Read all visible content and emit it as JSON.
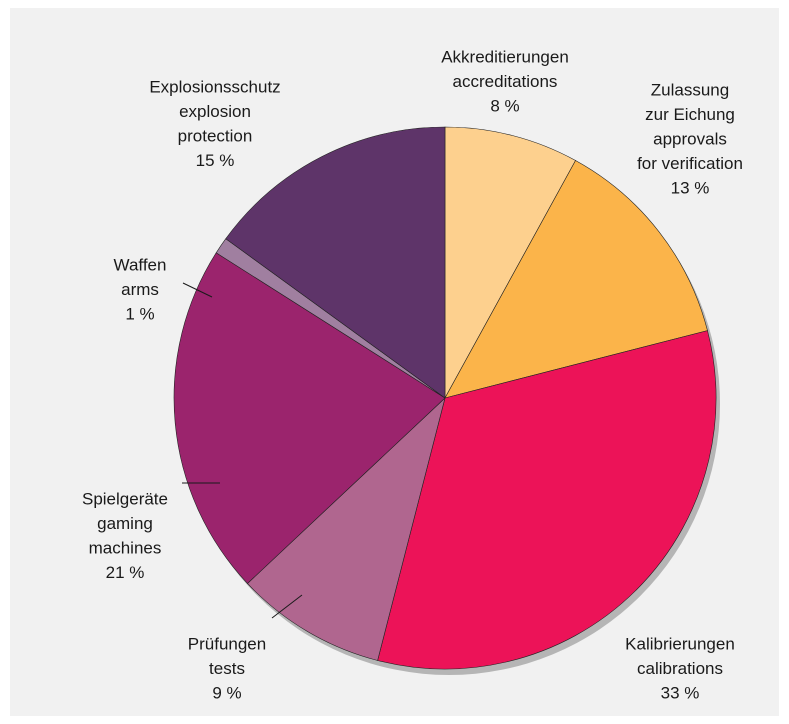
{
  "chart_data": {
    "type": "pie",
    "labels": [
      [
        "Akkreditierungen",
        "accreditations"
      ],
      [
        "Zulassung",
        "zur Eichung",
        "approvals",
        "for verification"
      ],
      [
        "Kalibrierungen",
        "calibrations"
      ],
      [
        "Prüfungen",
        "tests"
      ],
      [
        "Spielgeräte",
        "gaming",
        "machines"
      ],
      [
        "Waffen",
        "arms"
      ],
      [
        "Explosionsschutz",
        "explosion",
        "protection"
      ]
    ],
    "values": [
      8,
      13,
      33,
      9,
      21,
      1,
      15
    ],
    "value_labels": [
      "8 %",
      "13 %",
      "33 %",
      "9 %",
      "21 %",
      "1 %",
      "15 %"
    ],
    "colors": [
      "#fdd08e",
      "#fbb44a",
      "#ec1358",
      "#b0668f",
      "#9b246d",
      "#a07fa0",
      "#5e3469"
    ]
  }
}
